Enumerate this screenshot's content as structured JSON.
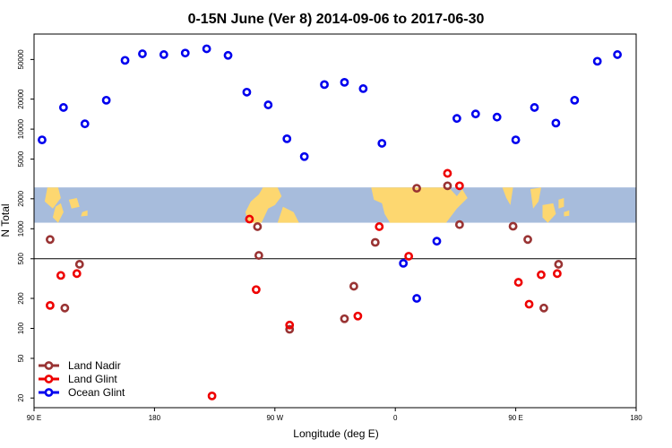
{
  "chart_data": {
    "type": "scatter",
    "title": "0-15N June (Ver 8)   2014-09-06 to 2017-06-30",
    "xlabel": "Longitude (deg E)",
    "ylabel": "N Total",
    "x_ticks": [
      {
        "value": -90,
        "label": "90 E"
      },
      {
        "value": 0,
        "label": "180"
      },
      {
        "value": 90,
        "label": "90 W"
      },
      {
        "value": 180,
        "label": "0"
      },
      {
        "value": 270,
        "label": "90 E"
      },
      {
        "value": 360,
        "label": "180"
      }
    ],
    "xlim": [
      -90,
      360
    ],
    "y_scale": "log",
    "ylim": [
      16,
      90000
    ],
    "y_ticks": [
      20,
      50,
      100,
      200,
      500,
      1000,
      2000,
      5000,
      10000,
      20000,
      50000
    ],
    "reference_line_y": 500,
    "map_band": {
      "y_range": [
        1150,
        2600
      ],
      "ocean_color": "#a7bcdc",
      "land_color": "#fdd770"
    },
    "legend": {
      "position": "bottom-left"
    },
    "series": [
      {
        "name": "Land Nadir",
        "color": "#993333",
        "points": [
          {
            "x": -78,
            "y": 780
          },
          {
            "x": -67,
            "y": 160
          },
          {
            "x": -56,
            "y": 440
          },
          {
            "x": 77,
            "y": 1050
          },
          {
            "x": 78,
            "y": 540
          },
          {
            "x": 101,
            "y": 98
          },
          {
            "x": 142,
            "y": 125
          },
          {
            "x": 149,
            "y": 265
          },
          {
            "x": 165,
            "y": 730
          },
          {
            "x": 196,
            "y": 2550
          },
          {
            "x": 219,
            "y": 2700
          },
          {
            "x": 228,
            "y": 1100
          },
          {
            "x": 268,
            "y": 1060
          },
          {
            "x": 279,
            "y": 780
          },
          {
            "x": 291,
            "y": 160
          },
          {
            "x": 302,
            "y": 440
          }
        ]
      },
      {
        "name": "Land Glint",
        "color": "#ee0000",
        "points": [
          {
            "x": -78,
            "y": 170
          },
          {
            "x": -70,
            "y": 340
          },
          {
            "x": -58,
            "y": 355
          },
          {
            "x": 43,
            "y": 21
          },
          {
            "x": 71,
            "y": 1250
          },
          {
            "x": 76,
            "y": 245
          },
          {
            "x": 101,
            "y": 108
          },
          {
            "x": 152,
            "y": 133
          },
          {
            "x": 168,
            "y": 1050
          },
          {
            "x": 190,
            "y": 530
          },
          {
            "x": 219,
            "y": 3600
          },
          {
            "x": 228,
            "y": 2700
          },
          {
            "x": 272,
            "y": 290
          },
          {
            "x": 280,
            "y": 175
          },
          {
            "x": 289,
            "y": 345
          },
          {
            "x": 301,
            "y": 355
          }
        ]
      },
      {
        "name": "Ocean Glint",
        "color": "#0000ee",
        "points": [
          {
            "x": -84,
            "y": 7800
          },
          {
            "x": -68,
            "y": 16500
          },
          {
            "x": -52,
            "y": 11300
          },
          {
            "x": -36,
            "y": 19500
          },
          {
            "x": -22,
            "y": 49000
          },
          {
            "x": -9,
            "y": 57000
          },
          {
            "x": 7,
            "y": 56000
          },
          {
            "x": 23,
            "y": 58000
          },
          {
            "x": 39,
            "y": 64000
          },
          {
            "x": 55,
            "y": 55000
          },
          {
            "x": 69,
            "y": 23500
          },
          {
            "x": 85,
            "y": 17500
          },
          {
            "x": 99,
            "y": 8000
          },
          {
            "x": 112,
            "y": 5300
          },
          {
            "x": 127,
            "y": 28000
          },
          {
            "x": 142,
            "y": 29500
          },
          {
            "x": 156,
            "y": 25500
          },
          {
            "x": 170,
            "y": 7200
          },
          {
            "x": 186,
            "y": 450
          },
          {
            "x": 196,
            "y": 200
          },
          {
            "x": 211,
            "y": 750
          },
          {
            "x": 226,
            "y": 12800
          },
          {
            "x": 240,
            "y": 14200
          },
          {
            "x": 256,
            "y": 13200
          },
          {
            "x": 270,
            "y": 7800
          },
          {
            "x": 284,
            "y": 16500
          },
          {
            "x": 300,
            "y": 11500
          },
          {
            "x": 314,
            "y": 19500
          },
          {
            "x": 331,
            "y": 48000
          },
          {
            "x": 346,
            "y": 56000
          }
        ]
      }
    ]
  }
}
